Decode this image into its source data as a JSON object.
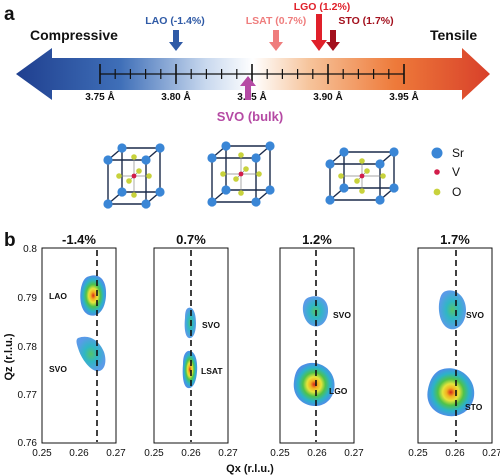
{
  "panel_a": {
    "label": "a",
    "left_label": "Compressive",
    "right_label": "Tensile",
    "tick_labels": [
      "3.75 Å",
      "3.80 Å",
      "3.85 Å",
      "3.90 Å",
      "3.95 Å"
    ],
    "substrates": [
      {
        "name": "LAO (-1.4%)",
        "color": "#2f5aa6"
      },
      {
        "name": "LSAT (0.7%)",
        "color": "#ef7d7d"
      },
      {
        "name": "LGO (1.2%)",
        "color": "#e0202a"
      },
      {
        "name": "STO (1.7%)",
        "color": "#a3101d"
      }
    ],
    "bulk": {
      "name": "SVO (bulk)",
      "color": "#b54aa4"
    },
    "legend": [
      {
        "label": "Sr",
        "color": "#3a86d6"
      },
      {
        "label": "V",
        "color": "#d21d4a"
      },
      {
        "label": "O",
        "color": "#c8d23c"
      }
    ]
  },
  "panel_b": {
    "label": "b",
    "ylabel": "Qz (r.l.u.)",
    "xlabel": "Qx (r.l.u.)",
    "yticks": [
      "0.8",
      "0.79",
      "0.78",
      "0.77",
      "0.76"
    ],
    "xticks": [
      "0.25",
      "0.26",
      "0.27"
    ],
    "maps": [
      {
        "title": "-1.4%",
        "substrate": "LAO",
        "film": "SVO"
      },
      {
        "title": "0.7%",
        "substrate": "LSAT",
        "film": "SVO"
      },
      {
        "title": "1.2%",
        "substrate": "LGO",
        "film": "SVO"
      },
      {
        "title": "1.7%",
        "substrate": "STO",
        "film": "SVO"
      }
    ]
  }
}
